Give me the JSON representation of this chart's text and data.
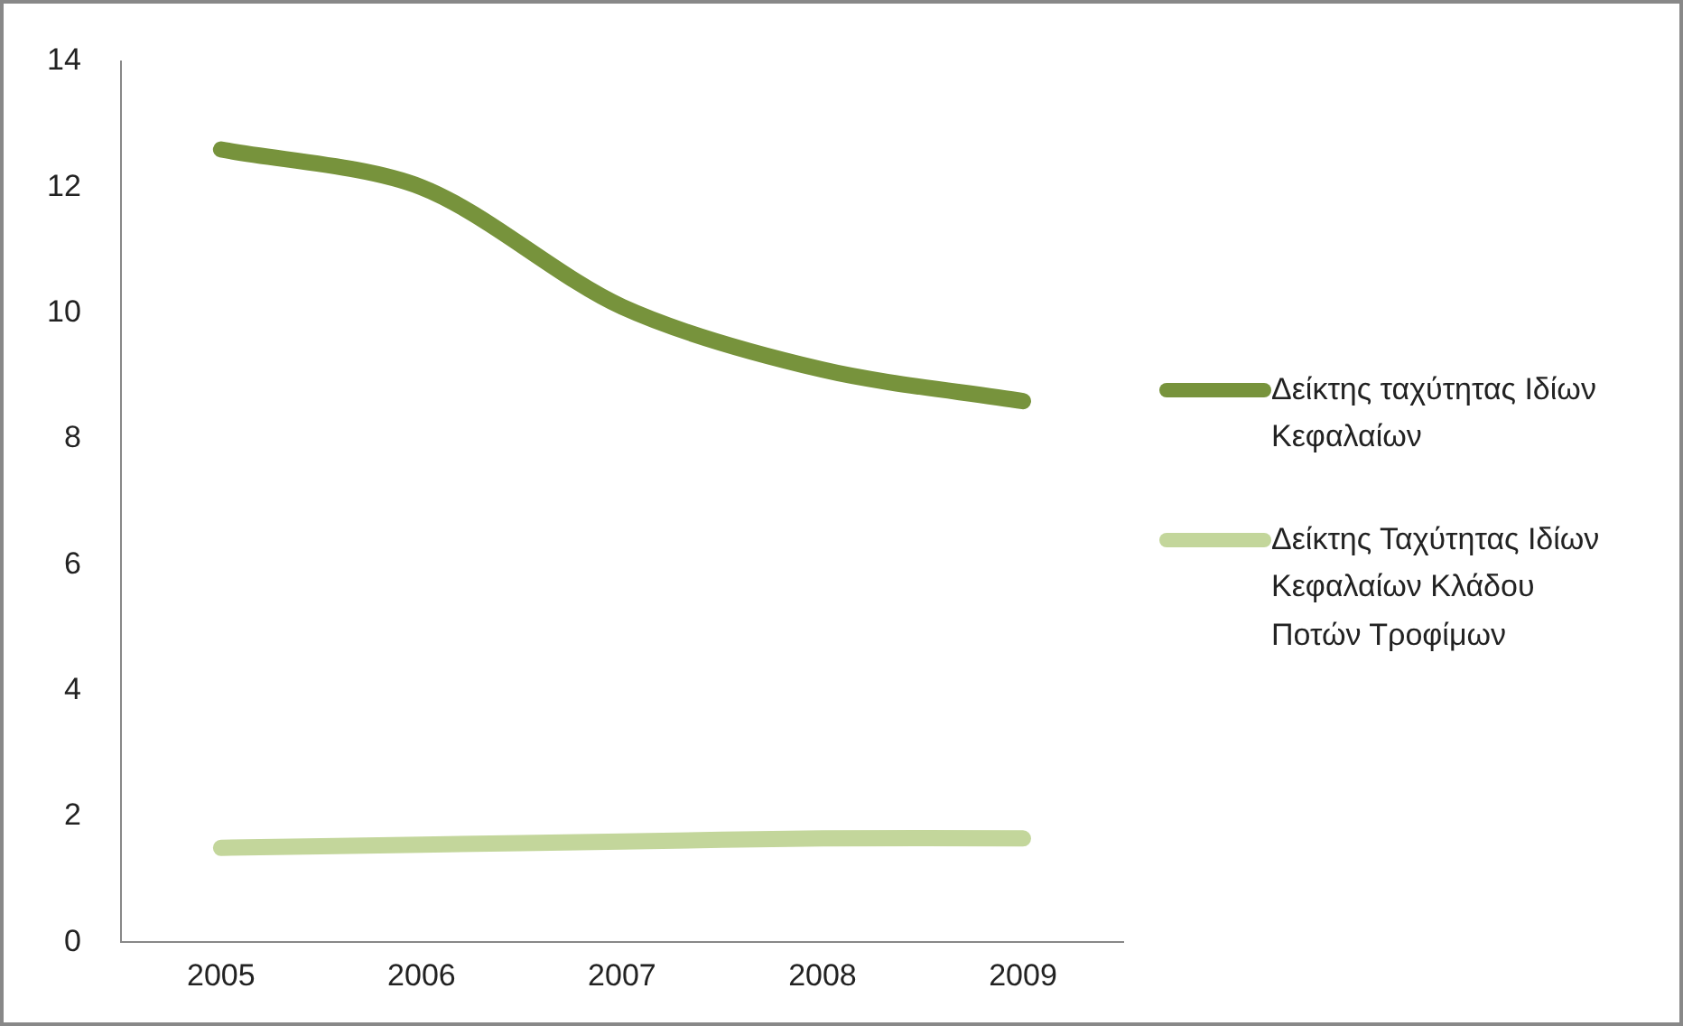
{
  "chart_data": {
    "type": "line",
    "categories": [
      "2005",
      "2006",
      "2007",
      "2008",
      "2009"
    ],
    "series": [
      {
        "name": "Δείκτης ταχύτητας Ιδίων Κεφαλαίων",
        "color": "#77933c",
        "values": [
          12.6,
          12.0,
          10.1,
          9.1,
          8.6
        ]
      },
      {
        "name": "Δείκτης Ταχύτητας Ιδίων Κεφαλαίων Κλάδου Ποτών Τροφίμων",
        "color": "#c3d69b",
        "values": [
          1.5,
          1.55,
          1.6,
          1.65,
          1.65
        ]
      }
    ],
    "ylim": [
      0,
      14
    ],
    "yticks": [
      0,
      2,
      4,
      6,
      8,
      10,
      12,
      14
    ],
    "legend": "right",
    "marker": "none"
  }
}
